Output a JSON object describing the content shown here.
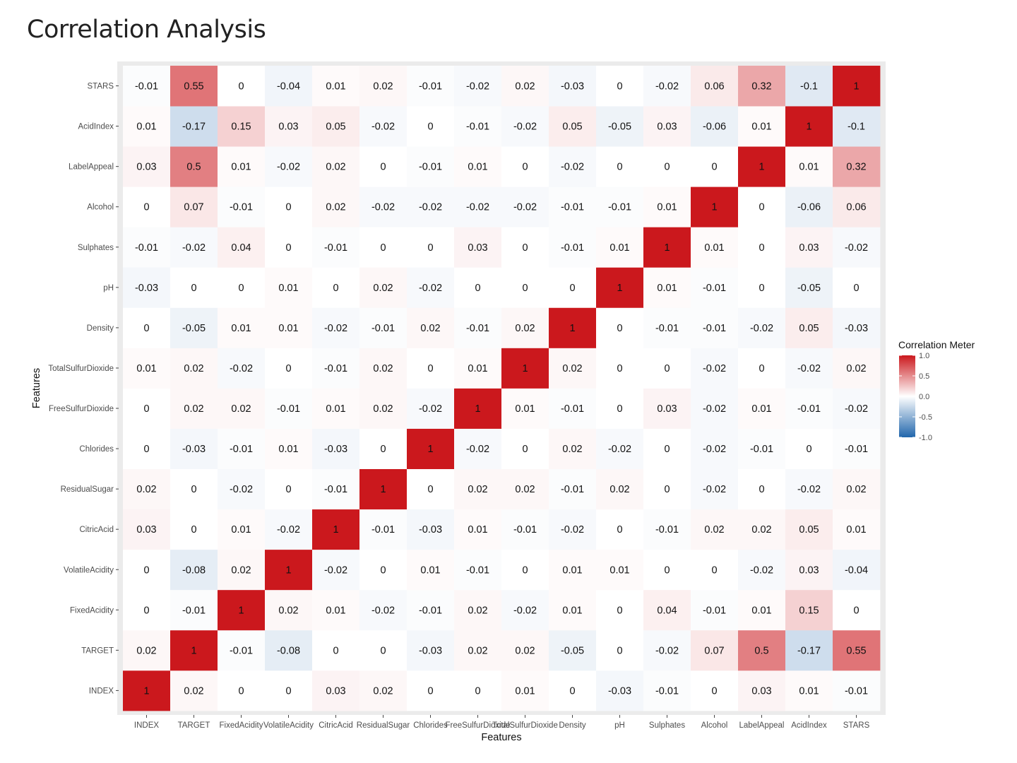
{
  "page": {
    "title": "Correlation Analysis"
  },
  "chart_data": {
    "type": "heatmap",
    "title": "",
    "xlabel": "Features",
    "ylabel": "Features",
    "x_categories": [
      "INDEX",
      "TARGET",
      "FixedAcidity",
      "VolatileAcidity",
      "CitricAcid",
      "ResidualSugar",
      "Chlorides",
      "FreeSulfurDioxide",
      "TotalSulfurDioxide",
      "Density",
      "pH",
      "Sulphates",
      "Alcohol",
      "LabelAppeal",
      "AcidIndex",
      "STARS"
    ],
    "y_categories": [
      "INDEX",
      "TARGET",
      "FixedAcidity",
      "VolatileAcidity",
      "CitricAcid",
      "ResidualSugar",
      "Chlorides",
      "FreeSulfurDioxide",
      "TotalSulfurDioxide",
      "Density",
      "pH",
      "Sulphates",
      "Alcohol",
      "LabelAppeal",
      "AcidIndex",
      "STARS"
    ],
    "values": [
      [
        1,
        0.02,
        0,
        0,
        0.03,
        0.02,
        0,
        0,
        0.01,
        0,
        -0.03,
        -0.01,
        0,
        0.03,
        0.01,
        -0.01
      ],
      [
        0.02,
        1,
        -0.01,
        -0.08,
        0,
        0,
        -0.03,
        0.02,
        0.02,
        -0.05,
        0,
        -0.02,
        0.07,
        0.5,
        -0.17,
        0.55
      ],
      [
        0,
        -0.01,
        1,
        0.02,
        0.01,
        -0.02,
        -0.01,
        0.02,
        -0.02,
        0.01,
        0,
        0.04,
        -0.01,
        0.01,
        0.15,
        0
      ],
      [
        0,
        -0.08,
        0.02,
        1,
        -0.02,
        0,
        0.01,
        -0.01,
        0,
        0.01,
        0.01,
        0,
        0,
        -0.02,
        0.03,
        -0.04
      ],
      [
        0.03,
        0,
        0.01,
        -0.02,
        1,
        -0.01,
        -0.03,
        0.01,
        -0.01,
        -0.02,
        0,
        -0.01,
        0.02,
        0.02,
        0.05,
        0.01
      ],
      [
        0.02,
        0,
        -0.02,
        0,
        -0.01,
        1,
        0,
        0.02,
        0.02,
        -0.01,
        0.02,
        0,
        -0.02,
        0,
        -0.02,
        0.02
      ],
      [
        0,
        -0.03,
        -0.01,
        0.01,
        -0.03,
        0,
        1,
        -0.02,
        0,
        0.02,
        -0.02,
        0,
        -0.02,
        -0.01,
        0,
        -0.01
      ],
      [
        0,
        0.02,
        0.02,
        -0.01,
        0.01,
        0.02,
        -0.02,
        1,
        0.01,
        -0.01,
        0,
        0.03,
        -0.02,
        0.01,
        -0.01,
        -0.02
      ],
      [
        0.01,
        0.02,
        -0.02,
        0,
        -0.01,
        0.02,
        0,
        0.01,
        1,
        0.02,
        0,
        0,
        -0.02,
        0,
        -0.02,
        0.02
      ],
      [
        0,
        -0.05,
        0.01,
        0.01,
        -0.02,
        -0.01,
        0.02,
        -0.01,
        0.02,
        1,
        0,
        -0.01,
        -0.01,
        -0.02,
        0.05,
        -0.03
      ],
      [
        -0.03,
        0,
        0,
        0.01,
        0,
        0.02,
        -0.02,
        0,
        0,
        0,
        1,
        0.01,
        -0.01,
        0,
        -0.05,
        0
      ],
      [
        -0.01,
        -0.02,
        0.04,
        0,
        -0.01,
        0,
        0,
        0.03,
        0,
        -0.01,
        0.01,
        1,
        0.01,
        0,
        0.03,
        -0.02
      ],
      [
        0,
        0.07,
        -0.01,
        0,
        0.02,
        -0.02,
        -0.02,
        -0.02,
        -0.02,
        -0.01,
        -0.01,
        0.01,
        1,
        0,
        -0.06,
        0.06
      ],
      [
        0.03,
        0.5,
        0.01,
        -0.02,
        0.02,
        0,
        -0.01,
        0.01,
        0,
        -0.02,
        0,
        0,
        0,
        1,
        0.01,
        0.32
      ],
      [
        0.01,
        -0.17,
        0.15,
        0.03,
        0.05,
        -0.02,
        0,
        -0.01,
        -0.02,
        0.05,
        -0.05,
        0.03,
        -0.06,
        0.01,
        1,
        -0.1
      ],
      [
        -0.01,
        0.55,
        0,
        -0.04,
        0.01,
        0.02,
        -0.01,
        -0.02,
        0.02,
        -0.03,
        0,
        -0.02,
        0.06,
        0.32,
        -0.1,
        1
      ]
    ],
    "legend": {
      "title": "Correlation Meter",
      "ticks": [
        "1.0",
        "0.5",
        "0.0",
        "-0.5",
        "-1.0"
      ],
      "range": [
        -1,
        1
      ],
      "placement": "right"
    },
    "colors": {
      "low": "#2166ac",
      "mid": "#ffffff",
      "high": "#cb181d",
      "panel": "#ebebeb"
    }
  }
}
